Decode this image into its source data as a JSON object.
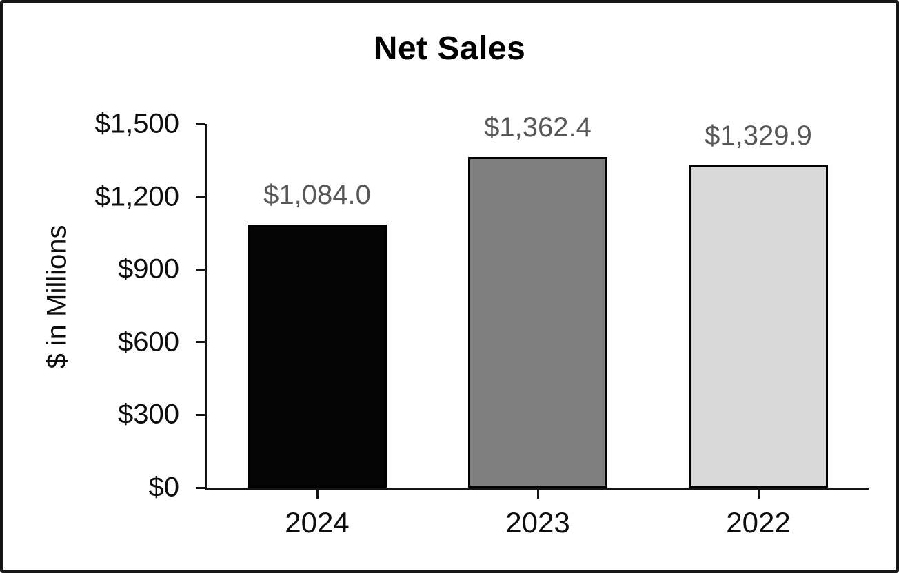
{
  "chart_data": {
    "type": "bar",
    "title": "Net Sales",
    "ylabel": "$ in Millions",
    "xlabel": "",
    "categories": [
      "2024",
      "2023",
      "2022"
    ],
    "values": [
      1084.0,
      1362.4,
      1329.9
    ],
    "bar_labels": [
      "$1,084.0",
      "$1,362.4",
      "$1,329.9"
    ],
    "bar_colors": [
      "#050505",
      "#7f7f7f",
      "#d9d9d9"
    ],
    "bar_border_color": "#000000",
    "value_label_color": "#575757",
    "yticks": [
      {
        "value": 0,
        "label": "$0"
      },
      {
        "value": 300,
        "label": "$300"
      },
      {
        "value": 600,
        "label": "$600"
      },
      {
        "value": 900,
        "label": "$900"
      },
      {
        "value": 1200,
        "label": "$1,200"
      },
      {
        "value": 1500,
        "label": "$1,500"
      }
    ],
    "ylim": [
      0,
      1500
    ],
    "grid": false,
    "legend": "none",
    "frame_color": "#161616"
  }
}
